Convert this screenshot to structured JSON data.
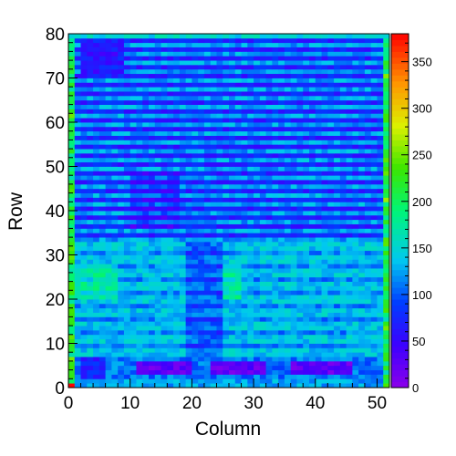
{
  "chart_data": {
    "type": "heatmap",
    "title": "",
    "xlabel": "Column",
    "ylabel": "Row",
    "xlim": [
      0,
      52
    ],
    "ylim": [
      0,
      80
    ],
    "zlim": [
      0,
      380
    ],
    "ncols": 52,
    "nrows": 80,
    "x_ticks": [
      "0",
      "10",
      "20",
      "30",
      "40",
      "50"
    ],
    "y_ticks": [
      "0",
      "10",
      "20",
      "30",
      "40",
      "50",
      "60",
      "70",
      "80"
    ],
    "colorbar_ticks": [
      "0",
      "50",
      "100",
      "150",
      "200",
      "250",
      "300",
      "350"
    ],
    "colorbar_values": [
      0,
      50,
      100,
      150,
      200,
      250,
      300,
      350
    ],
    "colormap": "rainbow (violet → blue → cyan → green → yellow → red)",
    "grid": false,
    "description_of_values": {
      "rows_0_1_edge": 120,
      "rows_3_to_6_column_blocks_12_18_24_30_37_45": 25,
      "rows_7_to_32": 140,
      "rows_33_to_78_alternating": [
        60,
        130
      ],
      "row_79_edge": 150,
      "column_0_and_51_edges": 170
    }
  }
}
